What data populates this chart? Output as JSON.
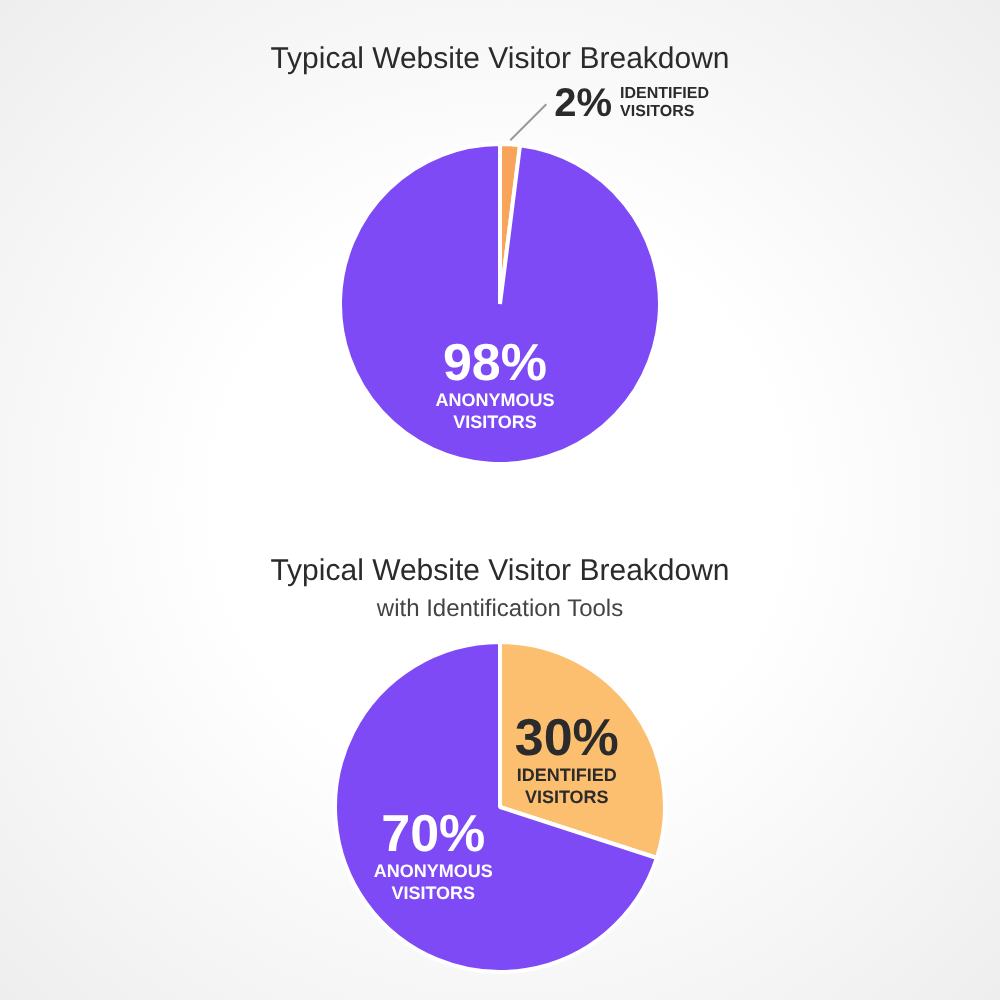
{
  "chart_data": [
    {
      "type": "pie",
      "title": "Typical Website Visitor Breakdown",
      "categories": [
        "IDENTIFIED VISITORS",
        "ANONYMOUS VISITORS"
      ],
      "values": [
        2,
        98
      ],
      "colors": [
        "#f8a55b",
        "#7d4af5"
      ],
      "value_labels": [
        "2%",
        "98%"
      ]
    },
    {
      "type": "pie",
      "title": "Typical Website Visitor Breakdown",
      "subtitle": "with Identification Tools",
      "categories": [
        "IDENTIFIED VISITORS",
        "ANONYMOUS VISITORS"
      ],
      "values": [
        30,
        70
      ],
      "colors": [
        "#fcbf70",
        "#7d4af5"
      ],
      "value_labels": [
        "30%",
        "70%"
      ]
    }
  ]
}
